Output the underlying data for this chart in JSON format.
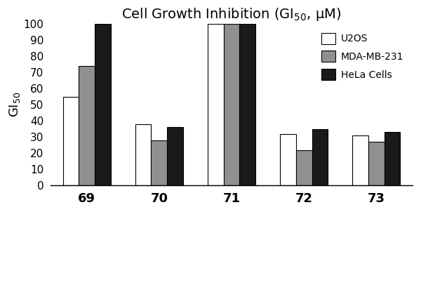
{
  "title": "Cell Growth Inhibition (GI$_{50}$, μM)",
  "ylabel": "GI$_{50}$",
  "categories": [
    "69",
    "70",
    "71",
    "72",
    "73"
  ],
  "series": {
    "U2OS": [
      55,
      38,
      100,
      32,
      31
    ],
    "MDA-MB-231": [
      74,
      28,
      100,
      22,
      27
    ],
    "HeLa Cells": [
      100,
      36,
      100,
      35,
      33
    ]
  },
  "colors": {
    "U2OS": "#ffffff",
    "MDA-MB-231": "#909090",
    "HeLa Cells": "#1a1a1a"
  },
  "edgecolors": {
    "U2OS": "#000000",
    "MDA-MB-231": "#000000",
    "HeLa Cells": "#000000"
  },
  "ylim": [
    0,
    100
  ],
  "yticks": [
    0,
    10,
    20,
    30,
    40,
    50,
    60,
    70,
    80,
    90,
    100
  ],
  "bar_width": 0.22,
  "figsize": [
    6.0,
    4.26
  ],
  "dpi": 100
}
